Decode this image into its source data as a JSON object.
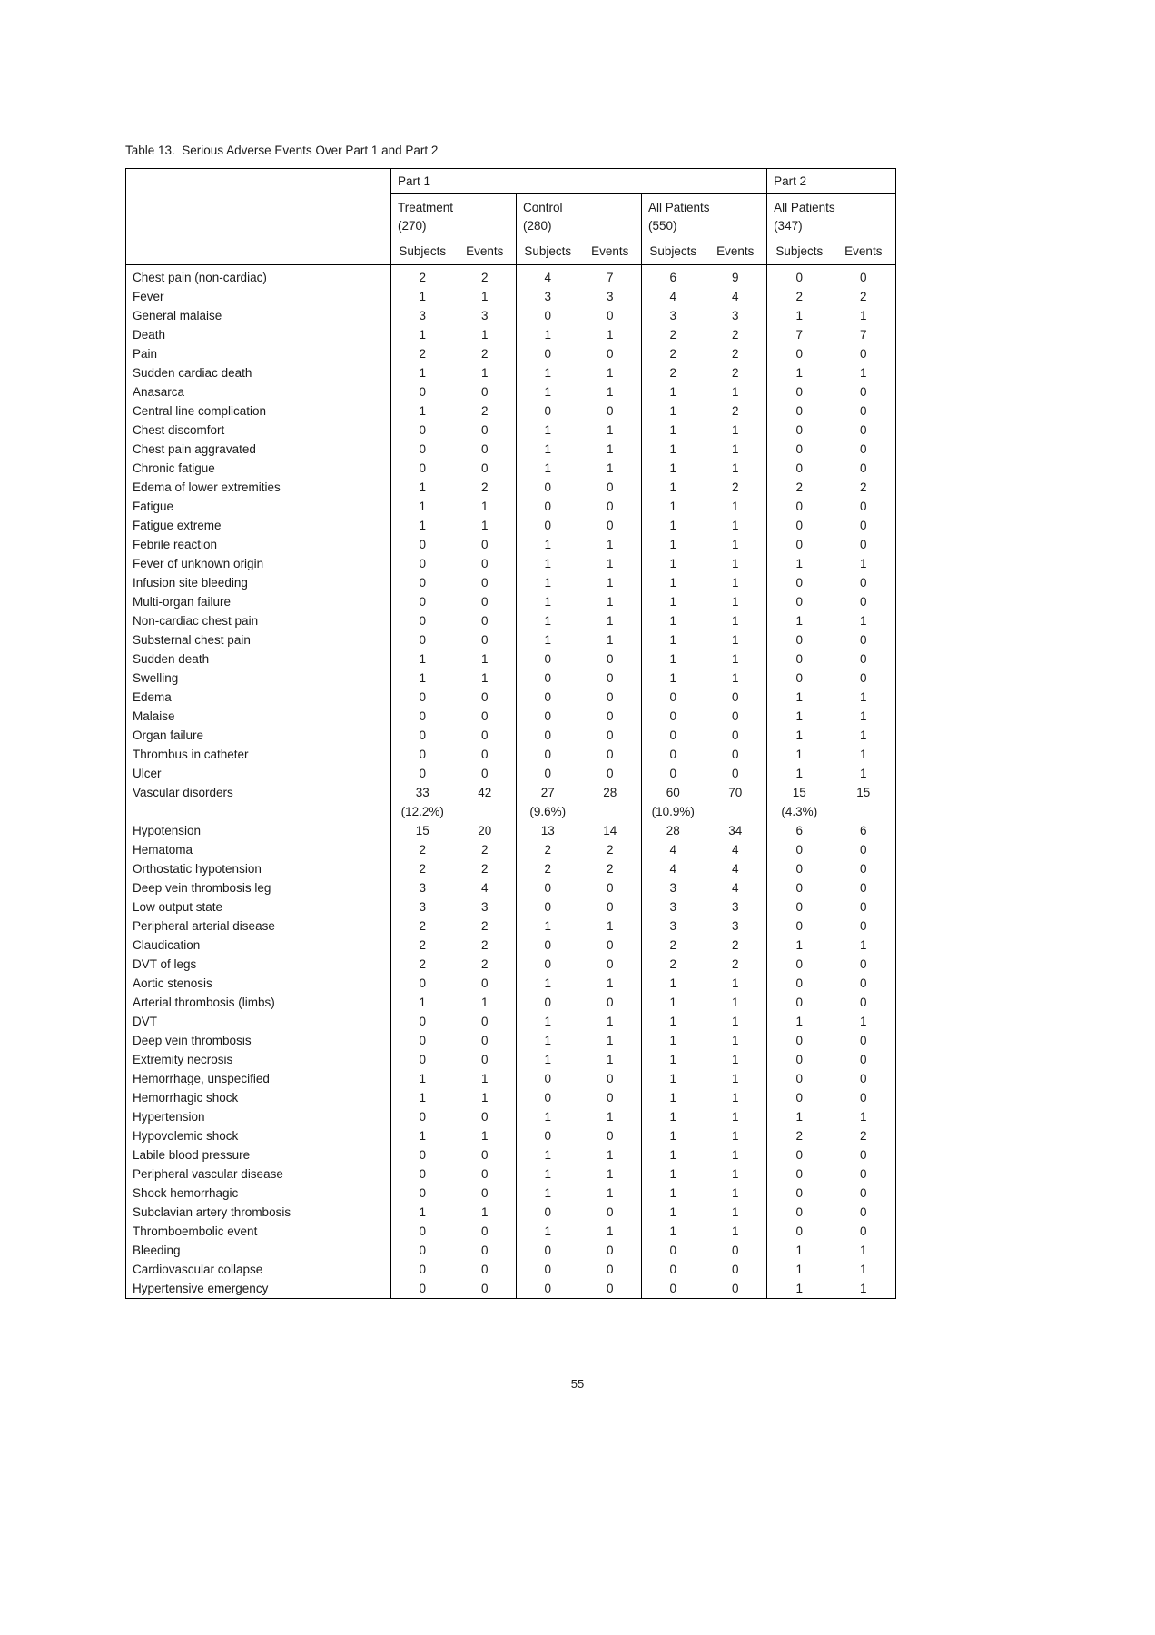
{
  "page": {
    "title": "Table 13.  Serious Adverse Events Over Part 1 and Part 2",
    "page_number": "55"
  },
  "table": {
    "part1_label": "Part 1",
    "part2_label": "Part 2",
    "groups": [
      {
        "label": "Treatment",
        "sublabel": "(270)"
      },
      {
        "label": "Control",
        "sublabel": "(280)"
      },
      {
        "label": "All Patients",
        "sublabel": "(550)"
      },
      {
        "label": "All Patients",
        "sublabel": "(347)"
      }
    ],
    "subheaders": [
      "Subjects",
      "Events"
    ],
    "rows": [
      {
        "label": "Chest pain (non-cardiac)",
        "values": [
          "2",
          "2",
          "4",
          "7",
          "6",
          "9",
          "0",
          "0"
        ]
      },
      {
        "label": "Fever",
        "values": [
          "1",
          "1",
          "3",
          "3",
          "4",
          "4",
          "2",
          "2"
        ]
      },
      {
        "label": "General malaise",
        "values": [
          "3",
          "3",
          "0",
          "0",
          "3",
          "3",
          "1",
          "1"
        ]
      },
      {
        "label": "Death",
        "values": [
          "1",
          "1",
          "1",
          "1",
          "2",
          "2",
          "7",
          "7"
        ]
      },
      {
        "label": "Pain",
        "values": [
          "2",
          "2",
          "0",
          "0",
          "2",
          "2",
          "0",
          "0"
        ]
      },
      {
        "label": "Sudden cardiac death",
        "values": [
          "1",
          "1",
          "1",
          "1",
          "2",
          "2",
          "1",
          "1"
        ]
      },
      {
        "label": "Anasarca",
        "values": [
          "0",
          "0",
          "1",
          "1",
          "1",
          "1",
          "0",
          "0"
        ]
      },
      {
        "label": "Central line complication",
        "values": [
          "1",
          "2",
          "0",
          "0",
          "1",
          "2",
          "0",
          "0"
        ]
      },
      {
        "label": "Chest discomfort",
        "values": [
          "0",
          "0",
          "1",
          "1",
          "1",
          "1",
          "0",
          "0"
        ]
      },
      {
        "label": "Chest pain aggravated",
        "values": [
          "0",
          "0",
          "1",
          "1",
          "1",
          "1",
          "0",
          "0"
        ]
      },
      {
        "label": "Chronic fatigue",
        "values": [
          "0",
          "0",
          "1",
          "1",
          "1",
          "1",
          "0",
          "0"
        ]
      },
      {
        "label": "Edema of lower extremities",
        "values": [
          "1",
          "2",
          "0",
          "0",
          "1",
          "2",
          "2",
          "2"
        ]
      },
      {
        "label": "Fatigue",
        "values": [
          "1",
          "1",
          "0",
          "0",
          "1",
          "1",
          "0",
          "0"
        ]
      },
      {
        "label": "Fatigue extreme",
        "values": [
          "1",
          "1",
          "0",
          "0",
          "1",
          "1",
          "0",
          "0"
        ]
      },
      {
        "label": "Febrile reaction",
        "values": [
          "0",
          "0",
          "1",
          "1",
          "1",
          "1",
          "0",
          "0"
        ]
      },
      {
        "label": "Fever of unknown origin",
        "values": [
          "0",
          "0",
          "1",
          "1",
          "1",
          "1",
          "1",
          "1"
        ]
      },
      {
        "label": "Infusion site bleeding",
        "values": [
          "0",
          "0",
          "1",
          "1",
          "1",
          "1",
          "0",
          "0"
        ]
      },
      {
        "label": "Multi-organ failure",
        "values": [
          "0",
          "0",
          "1",
          "1",
          "1",
          "1",
          "0",
          "0"
        ]
      },
      {
        "label": "Non-cardiac chest pain",
        "values": [
          "0",
          "0",
          "1",
          "1",
          "1",
          "1",
          "1",
          "1"
        ]
      },
      {
        "label": "Substernal chest pain",
        "values": [
          "0",
          "0",
          "1",
          "1",
          "1",
          "1",
          "0",
          "0"
        ]
      },
      {
        "label": "Sudden death",
        "values": [
          "1",
          "1",
          "0",
          "0",
          "1",
          "1",
          "0",
          "0"
        ]
      },
      {
        "label": "Swelling",
        "values": [
          "1",
          "1",
          "0",
          "0",
          "1",
          "1",
          "0",
          "0"
        ]
      },
      {
        "label": "Edema",
        "values": [
          "0",
          "0",
          "0",
          "0",
          "0",
          "0",
          "1",
          "1"
        ]
      },
      {
        "label": "Malaise",
        "values": [
          "0",
          "0",
          "0",
          "0",
          "0",
          "0",
          "1",
          "1"
        ]
      },
      {
        "label": "Organ failure",
        "values": [
          "0",
          "0",
          "0",
          "0",
          "0",
          "0",
          "1",
          "1"
        ]
      },
      {
        "label": "Thrombus in catheter",
        "values": [
          "0",
          "0",
          "0",
          "0",
          "0",
          "0",
          "1",
          "1"
        ]
      },
      {
        "label": "Ulcer",
        "values": [
          "0",
          "0",
          "0",
          "0",
          "0",
          "0",
          "1",
          "1"
        ]
      },
      {
        "label": "Vascular disorders",
        "values": [
          [
            "33",
            "(12.2%)"
          ],
          "42",
          [
            "27",
            "(9.6%)"
          ],
          "28",
          [
            "60",
            "(10.9%)"
          ],
          "70",
          [
            "15",
            "(4.3%)"
          ],
          "15"
        ]
      },
      {
        "label": "Hypotension",
        "values": [
          "15",
          "20",
          "13",
          "14",
          "28",
          "34",
          "6",
          "6"
        ]
      },
      {
        "label": "Hematoma",
        "values": [
          "2",
          "2",
          "2",
          "2",
          "4",
          "4",
          "0",
          "0"
        ]
      },
      {
        "label": "Orthostatic hypotension",
        "values": [
          "2",
          "2",
          "2",
          "2",
          "4",
          "4",
          "0",
          "0"
        ]
      },
      {
        "label": "Deep vein thrombosis leg",
        "values": [
          "3",
          "4",
          "0",
          "0",
          "3",
          "4",
          "0",
          "0"
        ]
      },
      {
        "label": "Low output state",
        "values": [
          "3",
          "3",
          "0",
          "0",
          "3",
          "3",
          "0",
          "0"
        ]
      },
      {
        "label": "Peripheral arterial disease",
        "values": [
          "2",
          "2",
          "1",
          "1",
          "3",
          "3",
          "0",
          "0"
        ]
      },
      {
        "label": "Claudication",
        "values": [
          "2",
          "2",
          "0",
          "0",
          "2",
          "2",
          "1",
          "1"
        ]
      },
      {
        "label": "DVT of legs",
        "values": [
          "2",
          "2",
          "0",
          "0",
          "2",
          "2",
          "0",
          "0"
        ]
      },
      {
        "label": "Aortic stenosis",
        "values": [
          "0",
          "0",
          "1",
          "1",
          "1",
          "1",
          "0",
          "0"
        ]
      },
      {
        "label": "Arterial thrombosis (limbs)",
        "values": [
          "1",
          "1",
          "0",
          "0",
          "1",
          "1",
          "0",
          "0"
        ]
      },
      {
        "label": "DVT",
        "values": [
          "0",
          "0",
          "1",
          "1",
          "1",
          "1",
          "1",
          "1"
        ]
      },
      {
        "label": "Deep vein thrombosis",
        "values": [
          "0",
          "0",
          "1",
          "1",
          "1",
          "1",
          "0",
          "0"
        ]
      },
      {
        "label": "Extremity necrosis",
        "values": [
          "0",
          "0",
          "1",
          "1",
          "1",
          "1",
          "0",
          "0"
        ]
      },
      {
        "label": "Hemorrhage, unspecified",
        "values": [
          "1",
          "1",
          "0",
          "0",
          "1",
          "1",
          "0",
          "0"
        ]
      },
      {
        "label": "Hemorrhagic shock",
        "values": [
          "1",
          "1",
          "0",
          "0",
          "1",
          "1",
          "0",
          "0"
        ]
      },
      {
        "label": "Hypertension",
        "values": [
          "0",
          "0",
          "1",
          "1",
          "1",
          "1",
          "1",
          "1"
        ]
      },
      {
        "label": "Hypovolemic shock",
        "values": [
          "1",
          "1",
          "0",
          "0",
          "1",
          "1",
          "2",
          "2"
        ]
      },
      {
        "label": "Labile blood pressure",
        "values": [
          "0",
          "0",
          "1",
          "1",
          "1",
          "1",
          "0",
          "0"
        ]
      },
      {
        "label": "Peripheral vascular disease",
        "values": [
          "0",
          "0",
          "1",
          "1",
          "1",
          "1",
          "0",
          "0"
        ]
      },
      {
        "label": "Shock hemorrhagic",
        "values": [
          "0",
          "0",
          "1",
          "1",
          "1",
          "1",
          "0",
          "0"
        ]
      },
      {
        "label": "Subclavian artery thrombosis",
        "values": [
          "1",
          "1",
          "0",
          "0",
          "1",
          "1",
          "0",
          "0"
        ]
      },
      {
        "label": "Thromboembolic event",
        "values": [
          "0",
          "0",
          "1",
          "1",
          "1",
          "1",
          "0",
          "0"
        ]
      },
      {
        "label": "Bleeding",
        "values": [
          "0",
          "0",
          "0",
          "0",
          "0",
          "0",
          "1",
          "1"
        ]
      },
      {
        "label": "Cardiovascular collapse",
        "values": [
          "0",
          "0",
          "0",
          "0",
          "0",
          "0",
          "1",
          "1"
        ]
      },
      {
        "label": "Hypertensive emergency",
        "values": [
          "0",
          "0",
          "0",
          "0",
          "0",
          "0",
          "1",
          "1"
        ]
      }
    ]
  }
}
